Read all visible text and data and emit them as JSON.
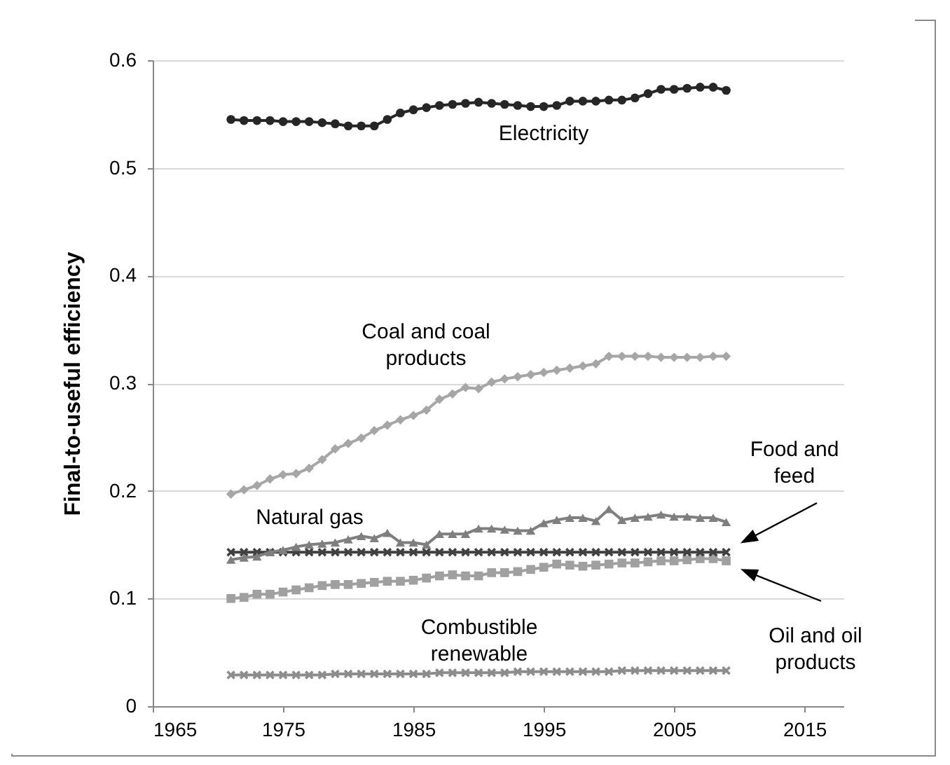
{
  "chart_data": {
    "type": "line",
    "ylabel": "Final-to-useful efficiency",
    "x": [
      1971,
      1972,
      1973,
      1974,
      1975,
      1976,
      1977,
      1978,
      1979,
      1980,
      1981,
      1982,
      1983,
      1984,
      1985,
      1986,
      1987,
      1988,
      1989,
      1990,
      1991,
      1992,
      1993,
      1994,
      1995,
      1996,
      1997,
      1998,
      1999,
      2000,
      2001,
      2002,
      2003,
      2004,
      2005,
      2006,
      2007,
      2008,
      2009
    ],
    "series": [
      {
        "color": "#262626",
        "marker": "circle",
        "values": [
          0.545,
          0.544,
          0.544,
          0.544,
          0.543,
          0.543,
          0.543,
          0.542,
          0.541,
          0.539,
          0.539,
          0.539,
          0.545,
          0.551,
          0.554,
          0.556,
          0.558,
          0.559,
          0.56,
          0.561,
          0.56,
          0.559,
          0.558,
          0.557,
          0.557,
          0.558,
          0.562,
          0.562,
          0.562,
          0.563,
          0.563,
          0.565,
          0.569,
          0.573,
          0.573,
          0.574,
          0.575,
          0.575,
          0.572
        ]
      },
      {
        "color": "#a6a6a6",
        "marker": "diamond",
        "values": [
          0.197,
          0.201,
          0.205,
          0.211,
          0.215,
          0.216,
          0.221,
          0.229,
          0.239,
          0.244,
          0.249,
          0.256,
          0.261,
          0.266,
          0.27,
          0.275,
          0.285,
          0.29,
          0.296,
          0.295,
          0.301,
          0.304,
          0.306,
          0.308,
          0.31,
          0.312,
          0.314,
          0.316,
          0.318,
          0.325,
          0.325,
          0.325,
          0.325,
          0.324,
          0.324,
          0.324,
          0.324,
          0.325,
          0.325
        ]
      },
      {
        "color": "#7f7f7f",
        "marker": "triangle",
        "values": [
          0.136,
          0.138,
          0.139,
          0.143,
          0.145,
          0.148,
          0.15,
          0.151,
          0.152,
          0.155,
          0.158,
          0.156,
          0.161,
          0.152,
          0.152,
          0.15,
          0.16,
          0.16,
          0.16,
          0.165,
          0.165,
          0.164,
          0.163,
          0.163,
          0.17,
          0.173,
          0.175,
          0.175,
          0.172,
          0.183,
          0.173,
          0.175,
          0.176,
          0.178,
          0.176,
          0.176,
          0.175,
          0.175,
          0.171
        ]
      },
      {
        "color": "#404040",
        "marker": "cross",
        "values": [
          0.143,
          0.143,
          0.143,
          0.143,
          0.143,
          0.143,
          0.143,
          0.143,
          0.143,
          0.143,
          0.143,
          0.143,
          0.143,
          0.143,
          0.143,
          0.143,
          0.143,
          0.143,
          0.143,
          0.143,
          0.143,
          0.143,
          0.143,
          0.143,
          0.143,
          0.143,
          0.143,
          0.143,
          0.143,
          0.143,
          0.143,
          0.143,
          0.143,
          0.143,
          0.143,
          0.143,
          0.143,
          0.143,
          0.143
        ]
      },
      {
        "color": "#a0a0a0",
        "marker": "square",
        "values": [
          0.1,
          0.101,
          0.104,
          0.104,
          0.106,
          0.108,
          0.11,
          0.112,
          0.113,
          0.113,
          0.114,
          0.115,
          0.116,
          0.116,
          0.117,
          0.119,
          0.121,
          0.122,
          0.121,
          0.121,
          0.124,
          0.124,
          0.125,
          0.127,
          0.129,
          0.132,
          0.131,
          0.13,
          0.131,
          0.132,
          0.133,
          0.133,
          0.134,
          0.135,
          0.135,
          0.136,
          0.137,
          0.137,
          0.135
        ]
      },
      {
        "color": "#8c8c8c",
        "marker": "cross",
        "values": [
          0.029,
          0.029,
          0.029,
          0.029,
          0.029,
          0.029,
          0.029,
          0.029,
          0.03,
          0.03,
          0.03,
          0.03,
          0.03,
          0.03,
          0.03,
          0.03,
          0.031,
          0.031,
          0.031,
          0.031,
          0.031,
          0.031,
          0.032,
          0.032,
          0.032,
          0.032,
          0.032,
          0.032,
          0.032,
          0.032,
          0.033,
          0.033,
          0.033,
          0.033,
          0.033,
          0.033,
          0.033,
          0.033,
          0.033
        ]
      }
    ],
    "annotations": [
      "Electricity",
      "Coal and coal products",
      "Natural gas",
      "Food and feed",
      "Combustible renewable",
      "Oil and oil products"
    ],
    "xlim": [
      1965,
      2018
    ],
    "xticks": [
      1965,
      1975,
      1985,
      1995,
      2005,
      2015
    ],
    "ylim": [
      0,
      0.6
    ],
    "yticks": [
      0,
      0.1,
      0.2,
      0.3,
      0.4,
      0.5,
      0.6
    ],
    "grid": "y",
    "line_style": "solid"
  }
}
